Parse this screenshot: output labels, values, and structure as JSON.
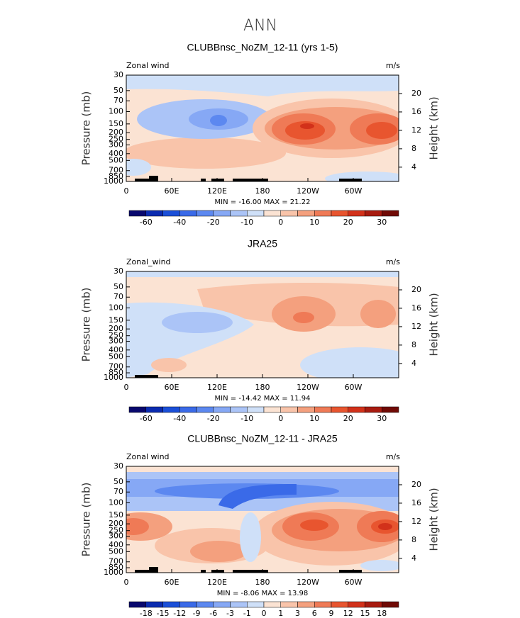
{
  "title": "ANN",
  "chart_data": [
    {
      "type": "contour",
      "title": "CLUBBnsc_NoZM_12-11 (yrs 1-5)",
      "variable": "Zonal wind",
      "units": "m/s",
      "ylabel": "Pressure (mb)",
      "y2label": "Height (km)",
      "stats": "MIN = -16.00   MAX =  21.22",
      "xlim": [
        0,
        360
      ],
      "xticks": [
        0,
        {
          "value": 60,
          "label": "60E"
        },
        {
          "value": 120,
          "label": "120E"
        },
        180,
        {
          "value": 240,
          "label": "120W"
        },
        {
          "value": 300,
          "label": "60W"
        }
      ],
      "ylim": [
        1000,
        30
      ],
      "yscale": "log",
      "yticks": [
        30,
        50,
        70,
        100,
        150,
        200,
        250,
        300,
        400,
        500,
        700,
        850,
        1000
      ],
      "y2lim": [
        0.9,
        24
      ],
      "y2ticks": [
        4,
        8,
        12,
        16,
        20
      ],
      "colorbar": {
        "colors": [
          "#08086e",
          "#0a2bb0",
          "#1a4fd8",
          "#3a6ae8",
          "#5c88f0",
          "#86a8f5",
          "#abc4f7",
          "#cfe0f8",
          "#fbe3d3",
          "#f9c4aa",
          "#f4a07e",
          "#ef7a56",
          "#e8552f",
          "#d2311a",
          "#a81b10",
          "#700a05"
        ],
        "labels": [
          -60,
          -40,
          -20,
          -10,
          0,
          10,
          20,
          30
        ]
      }
    },
    {
      "type": "contour",
      "title": "JRA25",
      "variable": "Zonal_wind",
      "units": "m/s",
      "ylabel": "Pressure (mb)",
      "y2label": "Height (km)",
      "stats": "MIN = -14.42   MAX =  11.94",
      "xlim": [
        0,
        360
      ],
      "xticks": [
        0,
        {
          "value": 60,
          "label": "60E"
        },
        {
          "value": 120,
          "label": "120E"
        },
        180,
        {
          "value": 240,
          "label": "120W"
        },
        {
          "value": 300,
          "label": "60W"
        }
      ],
      "ylim": [
        1000,
        30
      ],
      "yscale": "log",
      "yticks": [
        30,
        50,
        70,
        100,
        150,
        200,
        250,
        300,
        400,
        500,
        700,
        850,
        1000
      ],
      "y2lim": [
        0.9,
        24
      ],
      "y2ticks": [
        4,
        8,
        12,
        16,
        20
      ],
      "colorbar": {
        "colors": [
          "#08086e",
          "#0a2bb0",
          "#1a4fd8",
          "#3a6ae8",
          "#5c88f0",
          "#86a8f5",
          "#abc4f7",
          "#cfe0f8",
          "#fbe3d3",
          "#f9c4aa",
          "#f4a07e",
          "#ef7a56",
          "#e8552f",
          "#d2311a",
          "#a81b10",
          "#700a05"
        ],
        "labels": [
          -60,
          -40,
          -20,
          -10,
          0,
          10,
          20,
          30
        ]
      }
    },
    {
      "type": "contour",
      "title": "CLUBBnsc_NoZM_12-11 - JRA25",
      "variable": "Zonal wind",
      "units": "m/s",
      "ylabel": "Pressure (mb)",
      "y2label": "Height (km)",
      "stats": "MIN =  -8.06   MAX =  13.98",
      "xlim": [
        0,
        360
      ],
      "xticks": [
        0,
        {
          "value": 60,
          "label": "60E"
        },
        {
          "value": 120,
          "label": "120E"
        },
        180,
        {
          "value": 240,
          "label": "120W"
        },
        {
          "value": 300,
          "label": "60W"
        }
      ],
      "ylim": [
        1000,
        30
      ],
      "yscale": "log",
      "yticks": [
        30,
        50,
        70,
        100,
        150,
        200,
        250,
        300,
        400,
        500,
        700,
        850,
        1000
      ],
      "y2lim": [
        0.9,
        24
      ],
      "y2ticks": [
        4,
        8,
        12,
        16,
        20
      ],
      "colorbar": {
        "colors": [
          "#08086e",
          "#0a2bb0",
          "#1a4fd8",
          "#3a6ae8",
          "#5c88f0",
          "#86a8f5",
          "#abc4f7",
          "#cfe0f8",
          "#fbe3d3",
          "#f9c4aa",
          "#f4a07e",
          "#ef7a56",
          "#e8552f",
          "#d2311a",
          "#a81b10",
          "#700a05"
        ],
        "labels": [
          -18,
          -15,
          -12,
          -9,
          -6,
          -3,
          -1,
          0,
          1,
          3,
          6,
          9,
          12,
          15,
          18
        ]
      }
    }
  ]
}
